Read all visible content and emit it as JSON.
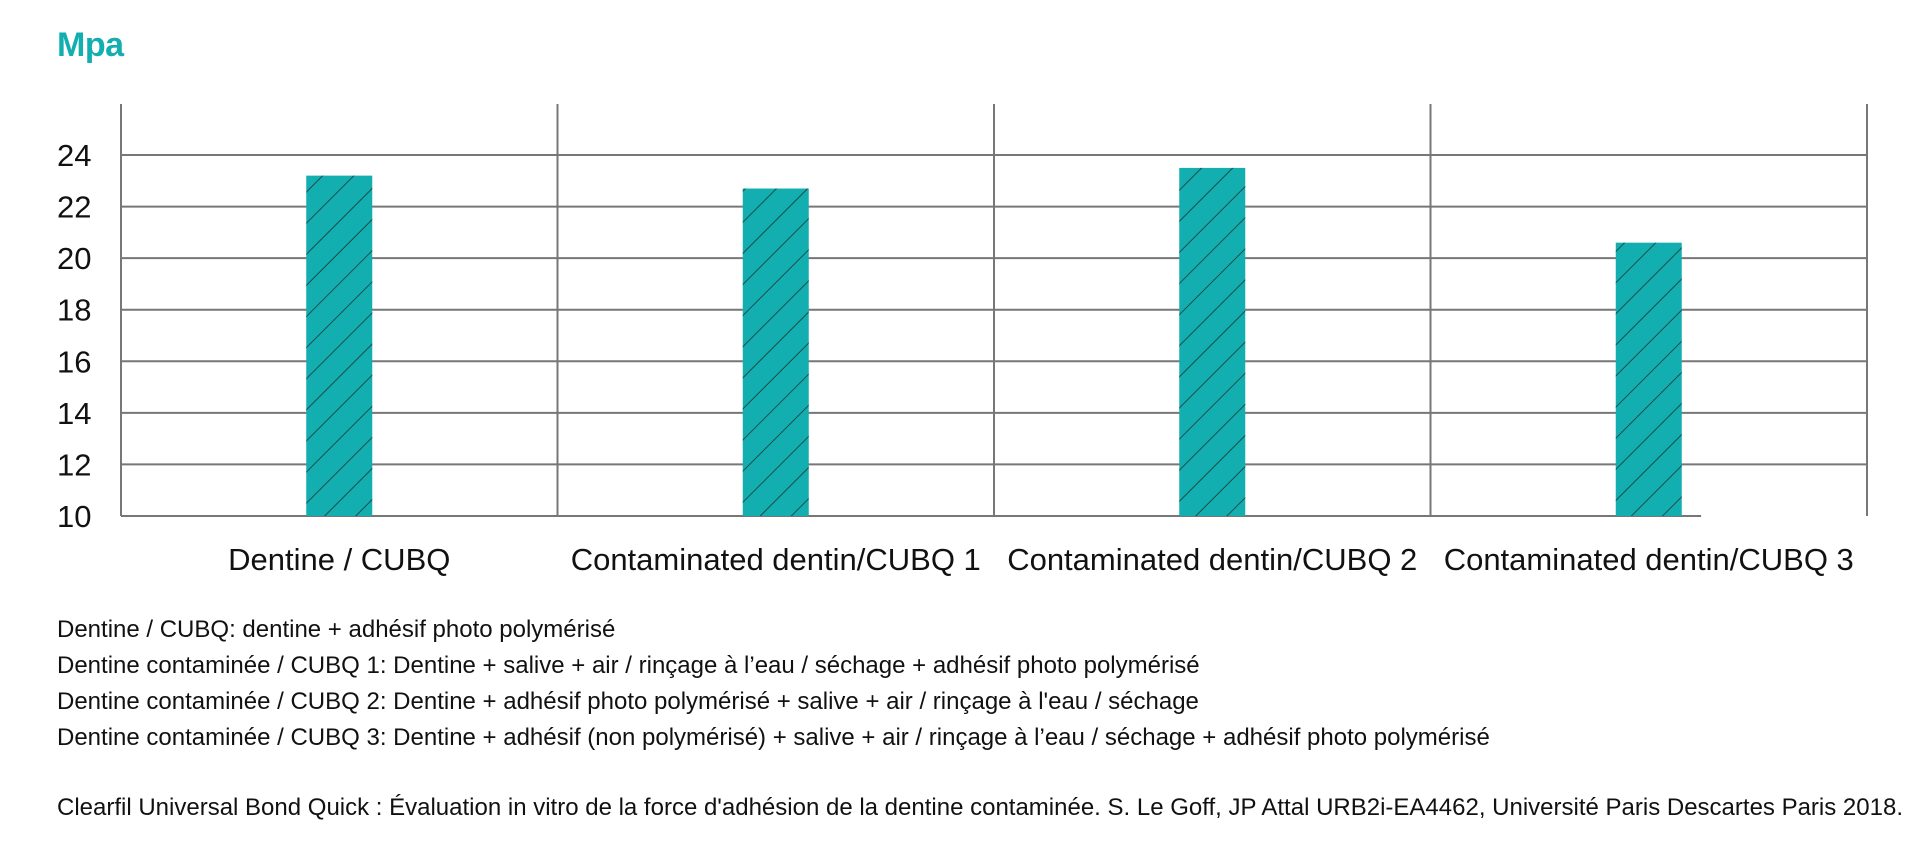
{
  "colors": {
    "bar": "#13aeaf",
    "ylabel": "#13aeaf",
    "grid": "#777777"
  },
  "chart_data": {
    "type": "bar",
    "ylabel": "Mpa",
    "xlabel": "",
    "ylim": [
      10,
      24
    ],
    "yticks": [
      10,
      12,
      14,
      16,
      18,
      20,
      22,
      24
    ],
    "grid": true,
    "pattern": "diagonal-hatch",
    "categories": [
      "Dentine / CUBQ",
      "Contaminated dentin/CUBQ 1",
      "Contaminated dentin/CUBQ 2",
      "Contaminated dentin/CUBQ 3"
    ],
    "values": [
      23.2,
      22.7,
      23.5,
      20.6
    ]
  },
  "notes": [
    "Dentine / CUBQ: dentine + adhésif photo polymérisé",
    "Dentine contaminée / CUBQ 1: Dentine + salive + air / rinçage à l’eau / séchage + adhésif photo polymérisé",
    "Dentine contaminée / CUBQ 2: Dentine + adhésif photo polymérisé + salive + air / rinçage à l'eau / séchage",
    "Dentine contaminée / CUBQ 3: Dentine + adhésif (non polymérisé) + salive + air / rinçage à l’eau / séchage + adhésif photo polymérisé"
  ],
  "source": "Clearfil Universal Bond Quick : Évaluation in vitro de la force d'adhésion de la dentine contaminée. S. Le Goff, JP Attal URB2i-EA4462, Université Paris Descartes Paris 2018."
}
